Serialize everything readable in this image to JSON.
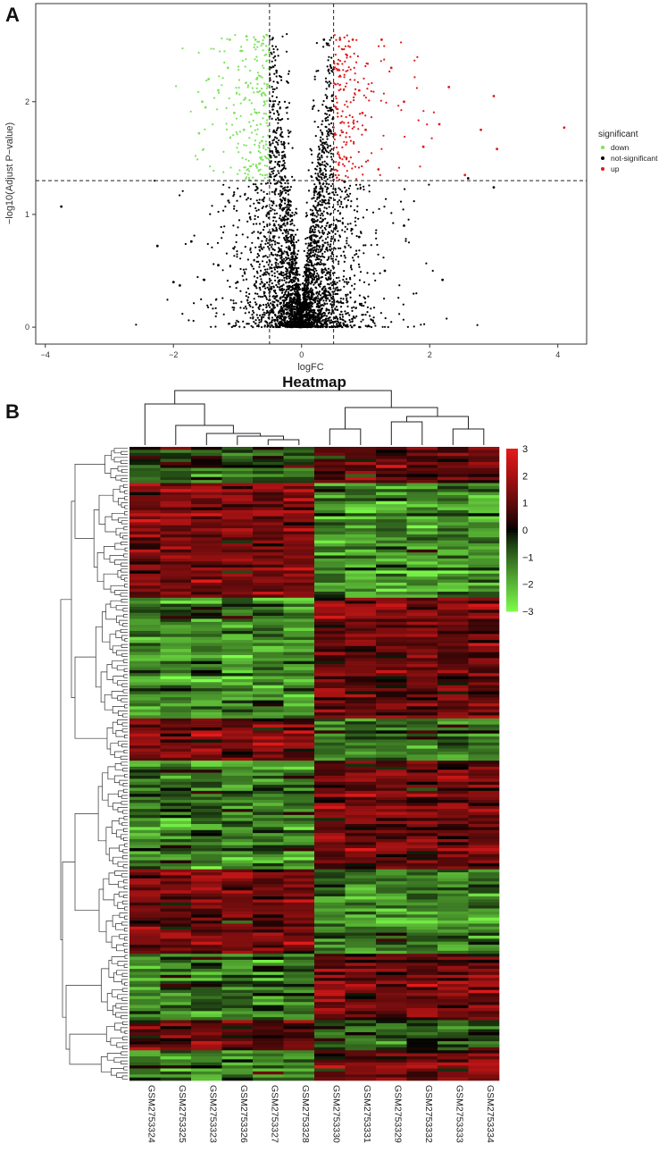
{
  "panels": {
    "a_label": "A",
    "b_label": "B"
  },
  "chart_data": [
    {
      "type": "scatter",
      "title": "",
      "xlabel": "logFC",
      "ylabel": "−log10(Adjust P−value)",
      "xlim": [
        -4.15,
        4.45
      ],
      "ylim": [
        -0.15,
        2.87
      ],
      "xticks": [
        -4,
        -2,
        0,
        2,
        4
      ],
      "xtick_labels": [
        "−4",
        "−2",
        "0",
        "2",
        "4"
      ],
      "yticks": [
        0,
        1,
        2
      ],
      "ytick_labels": [
        "0",
        "1",
        "2"
      ],
      "grid": false,
      "legend_position": "right",
      "legend_title": "significant",
      "thresholds": {
        "logfc": [
          -0.5,
          0.5
        ],
        "neglog10p": 1.3
      },
      "colors": {
        "down": "#7CE35A",
        "not-significant": "#000000",
        "up": "#E0191C"
      },
      "series": [
        {
          "name": "down",
          "color": "#7CE35A",
          "points": [
            [
              -1.12,
              2.55
            ],
            [
              -0.86,
              2.58
            ],
            [
              -0.72,
              2.55
            ],
            [
              -1.45,
              2.2
            ],
            [
              -1.55,
              2.0
            ],
            [
              -1.5,
              1.95
            ],
            [
              -1.3,
              2.1
            ],
            [
              -1.05,
              1.9
            ],
            [
              -1.6,
              1.72
            ],
            [
              -1.15,
              2.3
            ],
            [
              -0.95,
              2.45
            ],
            [
              -0.7,
              2.2
            ],
            [
              -0.62,
              1.65
            ],
            [
              -0.66,
              1.45
            ],
            [
              -0.8,
              1.55
            ],
            [
              -0.58,
              2.0
            ],
            [
              -0.9,
              1.75
            ],
            [
              -0.7,
              1.9
            ]
          ]
        },
        {
          "name": "not-significant",
          "color": "#000000",
          "points": [
            [
              -3.75,
              1.07
            ],
            [
              -2.25,
              0.72
            ],
            [
              -1.72,
              0.76
            ],
            [
              -2.0,
              0.4
            ],
            [
              -1.9,
              0.37
            ],
            [
              -1.3,
              0.55
            ],
            [
              -1.52,
              0.42
            ],
            [
              -0.2,
              2.93
            ],
            [
              0.35,
              2.55
            ],
            [
              -0.45,
              0.2
            ],
            [
              0.5,
              0.2
            ],
            [
              2.2,
              0.42
            ],
            [
              3.0,
              1.24
            ],
            [
              2.6,
              1.32
            ],
            [
              1.6,
              0.9
            ],
            [
              0.9,
              0.8
            ],
            [
              -1.0,
              0.4
            ],
            [
              1.3,
              0.5
            ]
          ]
        },
        {
          "name": "up",
          "color": "#E0191C",
          "points": [
            [
              4.1,
              1.77
            ],
            [
              3.0,
              2.05
            ],
            [
              2.3,
              2.13
            ],
            [
              2.8,
              1.75
            ],
            [
              2.55,
              1.35
            ],
            [
              2.15,
              1.8
            ],
            [
              0.6,
              2.55
            ],
            [
              0.8,
              2.55
            ],
            [
              1.25,
              2.55
            ],
            [
              1.4,
              2.3
            ],
            [
              1.6,
              2.0
            ],
            [
              1.9,
              1.6
            ],
            [
              3.05,
              1.58
            ],
            [
              0.9,
              2.1
            ],
            [
              1.0,
              1.75
            ],
            [
              0.7,
              1.5
            ],
            [
              1.2,
              1.4
            ],
            [
              0.95,
              1.9
            ]
          ]
        }
      ]
    },
    {
      "type": "heatmap",
      "title": "Heatmap",
      "columns": [
        "GSM2753324",
        "GSM2753325",
        "GSM2753323",
        "GSM2753326",
        "GSM2753327",
        "GSM2753328",
        "GSM2753330",
        "GSM2753331",
        "GSM2753329",
        "GSM2753332",
        "GSM2753333",
        "GSM2753334"
      ],
      "row_count": 210,
      "colorscale": {
        "low": "#7CFC4A",
        "mid": "#000000",
        "high": "#E6191A",
        "min": -3,
        "max": 3
      },
      "legend_ticks": [
        "3",
        "2",
        "1",
        "0",
        "−1",
        "−2",
        "−3"
      ],
      "legend_values": [
        3,
        2,
        1,
        0,
        -1,
        -2,
        -3
      ],
      "row_blocks": [
        {
          "rows": 12,
          "g1": -0.3,
          "g2": 1.2
        },
        {
          "rows": 38,
          "g1": 1.4,
          "g2": -1.5
        },
        {
          "rows": 40,
          "g1": -1.2,
          "g2": 1.3
        },
        {
          "rows": 14,
          "g1": 1.3,
          "g2": -1.1
        },
        {
          "rows": 36,
          "g1": -1.1,
          "g2": 1.2
        },
        {
          "rows": 28,
          "g1": 1.2,
          "g2": -1.3
        },
        {
          "rows": 22,
          "g1": -1.1,
          "g2": 1.2
        },
        {
          "rows": 10,
          "g1": 0.9,
          "g2": -0.8
        },
        {
          "rows": 10,
          "g1": -1.2,
          "g2": 1.2
        }
      ]
    }
  ]
}
